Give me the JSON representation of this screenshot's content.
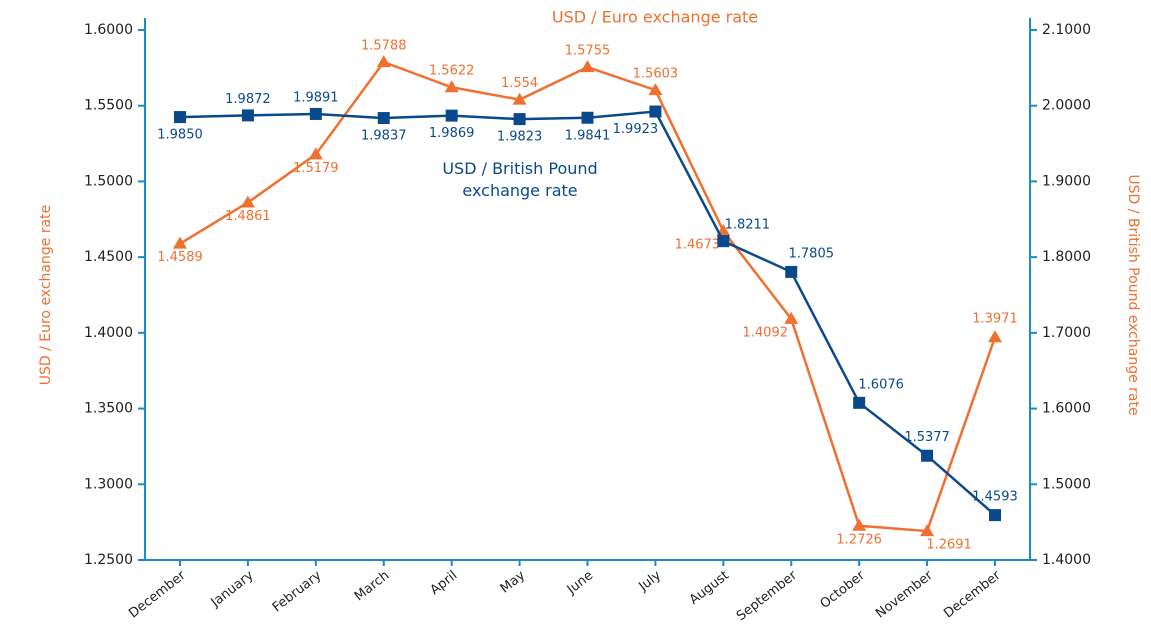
{
  "chart_data": {
    "type": "line",
    "title": "USD / Euro exchange rate",
    "ylabel": "USD / Euro exchange rate",
    "y2label": "USD / British Pound exchange rate",
    "categories": [
      "December",
      "January",
      "February",
      "March",
      "April",
      "May",
      "June",
      "July",
      "August",
      "September",
      "October",
      "November",
      "December"
    ],
    "ylim": [
      1.25,
      1.6
    ],
    "yticks": [
      {
        "value": 1.25,
        "label": "1.2500"
      },
      {
        "value": 1.3,
        "label": "1.3000"
      },
      {
        "value": 1.35,
        "label": "1.3500"
      },
      {
        "value": 1.4,
        "label": "1.4000"
      },
      {
        "value": 1.45,
        "label": "1.4500"
      },
      {
        "value": 1.5,
        "label": "1.5000"
      },
      {
        "value": 1.55,
        "label": "1.5500"
      },
      {
        "value": 1.6,
        "label": "1.6000"
      }
    ],
    "y2lim": [
      1.4,
      2.1
    ],
    "y2ticks": [
      {
        "value": 1.4,
        "label": "1.4000"
      },
      {
        "value": 1.5,
        "label": "1.5000"
      },
      {
        "value": 1.6,
        "label": "1.6000"
      },
      {
        "value": 1.7,
        "label": "1.7000"
      },
      {
        "value": 1.8,
        "label": "1.8000"
      },
      {
        "value": 1.9,
        "label": "1.9000"
      },
      {
        "value": 2.0,
        "label": "2.0000"
      },
      {
        "value": 2.1,
        "label": "2.1000"
      }
    ],
    "series": [
      {
        "name": "USD / Euro exchange rate",
        "color": "#f07030",
        "marker": "triangle",
        "values": [
          1.4589,
          1.4861,
          1.5179,
          1.5788,
          1.5622,
          1.554,
          1.5755,
          1.5603,
          1.4673,
          1.4092,
          1.2726,
          1.2691,
          1.3971
        ]
      },
      {
        "name": "USD / British Pound exchange rate",
        "color": "#0a4a8c",
        "marker": "square",
        "axis": "y2",
        "values": [
          1.985,
          1.9872,
          1.9891,
          1.9837,
          1.9869,
          1.9823,
          1.9841,
          1.9923,
          1.8211,
          1.7805,
          1.6076,
          1.5377,
          1.4593
        ],
        "value_labels": [
          "1.9850",
          "1.9872",
          "1.9891",
          "1.9837",
          "1.9869",
          "1.9823",
          "1.9841",
          "1.9923",
          "1.8211",
          "1.7805",
          "1.6076",
          "1.5377",
          "1.4593"
        ]
      }
    ]
  }
}
